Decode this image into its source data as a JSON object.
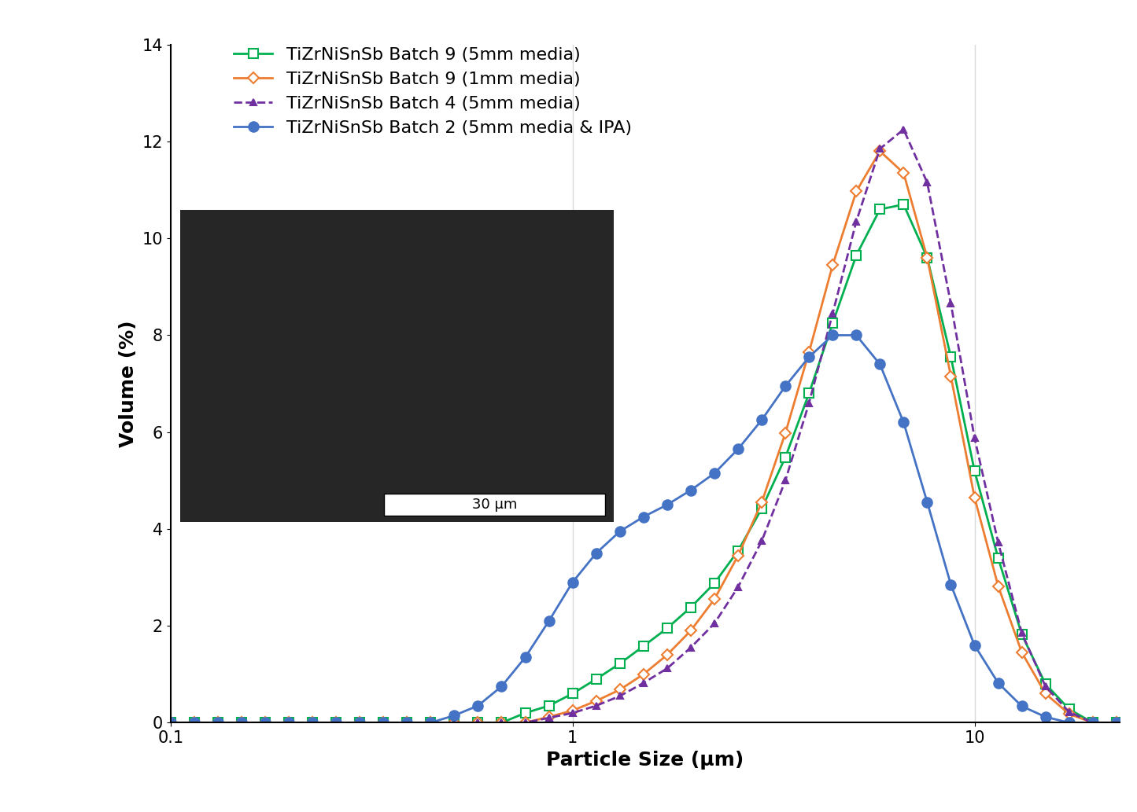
{
  "chart_data": {
    "type": "line",
    "xlabel": "Particle Size (µm)",
    "ylabel": "Volume (%)",
    "annotations": [
      "30 µm"
    ],
    "log": "x",
    "grid": true,
    "legend": "upper left",
    "xlim": [
      0.1,
      23
    ],
    "xticks": [
      0.1,
      1,
      10
    ],
    "ylim": [
      0,
      14
    ],
    "yticks": [
      0,
      2,
      4,
      6,
      8,
      10,
      12,
      14
    ],
    "x": [
      0.1,
      0.1145,
      0.1311,
      0.1501,
      0.1719,
      0.1968,
      0.2254,
      0.2581,
      0.2955,
      0.3384,
      0.3875,
      0.4437,
      0.508,
      0.5817,
      0.6661,
      0.7627,
      0.8733,
      1.0,
      1.145,
      1.311,
      1.501,
      1.719,
      1.968,
      2.254,
      2.581,
      2.955,
      3.384,
      3.875,
      4.437,
      5.08,
      5.817,
      6.661,
      7.627,
      8.733,
      10.0,
      11.45,
      13.11,
      15.01,
      17.19,
      19.68,
      22.54
    ],
    "series": [
      {
        "name": "TiZrNiSnSb Batch 9 (5mm media)",
        "color": "#00b050",
        "marker": "square_open",
        "line_style": "solid",
        "values": [
          0,
          0,
          0,
          0,
          0,
          0,
          0,
          0,
          0,
          0,
          0,
          0,
          0,
          0,
          0,
          0.2,
          0.35,
          0.6,
          0.9,
          1.22,
          1.58,
          1.95,
          2.38,
          2.88,
          3.55,
          4.42,
          5.48,
          6.8,
          8.25,
          9.65,
          10.6,
          10.7,
          9.6,
          7.55,
          5.2,
          3.4,
          1.82,
          0.8,
          0.28,
          0,
          0
        ]
      },
      {
        "name": "TiZrNiSnSb Batch 9 (1mm media)",
        "color": "#ed7d31",
        "marker": "diamond_open",
        "line_style": "solid",
        "values": [
          0,
          0,
          0,
          0,
          0,
          0,
          0,
          0,
          0,
          0,
          0,
          0,
          0,
          0,
          0,
          0,
          0.12,
          0.25,
          0.45,
          0.68,
          1.0,
          1.4,
          1.9,
          2.55,
          3.45,
          4.55,
          5.98,
          7.65,
          9.45,
          10.97,
          11.8,
          11.35,
          9.6,
          7.15,
          4.65,
          2.82,
          1.45,
          0.6,
          0.18,
          0,
          0
        ]
      },
      {
        "name": "TiZrNiSnSb Batch 4 (5mm media)",
        "color": "#7030a0",
        "marker": "triangle",
        "line_style": "dashed",
        "values": [
          0,
          0,
          0,
          0,
          0,
          0,
          0,
          0,
          0,
          0,
          0,
          0,
          0,
          0,
          0,
          0,
          0.1,
          0.2,
          0.35,
          0.55,
          0.82,
          1.12,
          1.55,
          2.05,
          2.8,
          3.75,
          5.0,
          6.6,
          8.45,
          10.35,
          11.85,
          12.25,
          11.15,
          8.65,
          5.88,
          3.72,
          1.85,
          0.75,
          0.22,
          0,
          0
        ]
      },
      {
        "name": "TiZrNiSnSb Batch 2 (5mm media & IPA)",
        "color": "#4472c4",
        "marker": "circle",
        "line_style": "solid",
        "values": [
          0,
          0,
          0,
          0,
          0,
          0,
          0,
          0,
          0,
          0,
          0,
          0,
          0.15,
          0.35,
          0.75,
          1.35,
          2.1,
          2.9,
          3.5,
          3.95,
          4.25,
          4.5,
          4.8,
          5.15,
          5.65,
          6.25,
          6.95,
          7.55,
          8.0,
          8.0,
          7.4,
          6.2,
          4.55,
          2.85,
          1.6,
          0.82,
          0.34,
          0.12,
          0,
          0,
          0
        ]
      }
    ]
  }
}
